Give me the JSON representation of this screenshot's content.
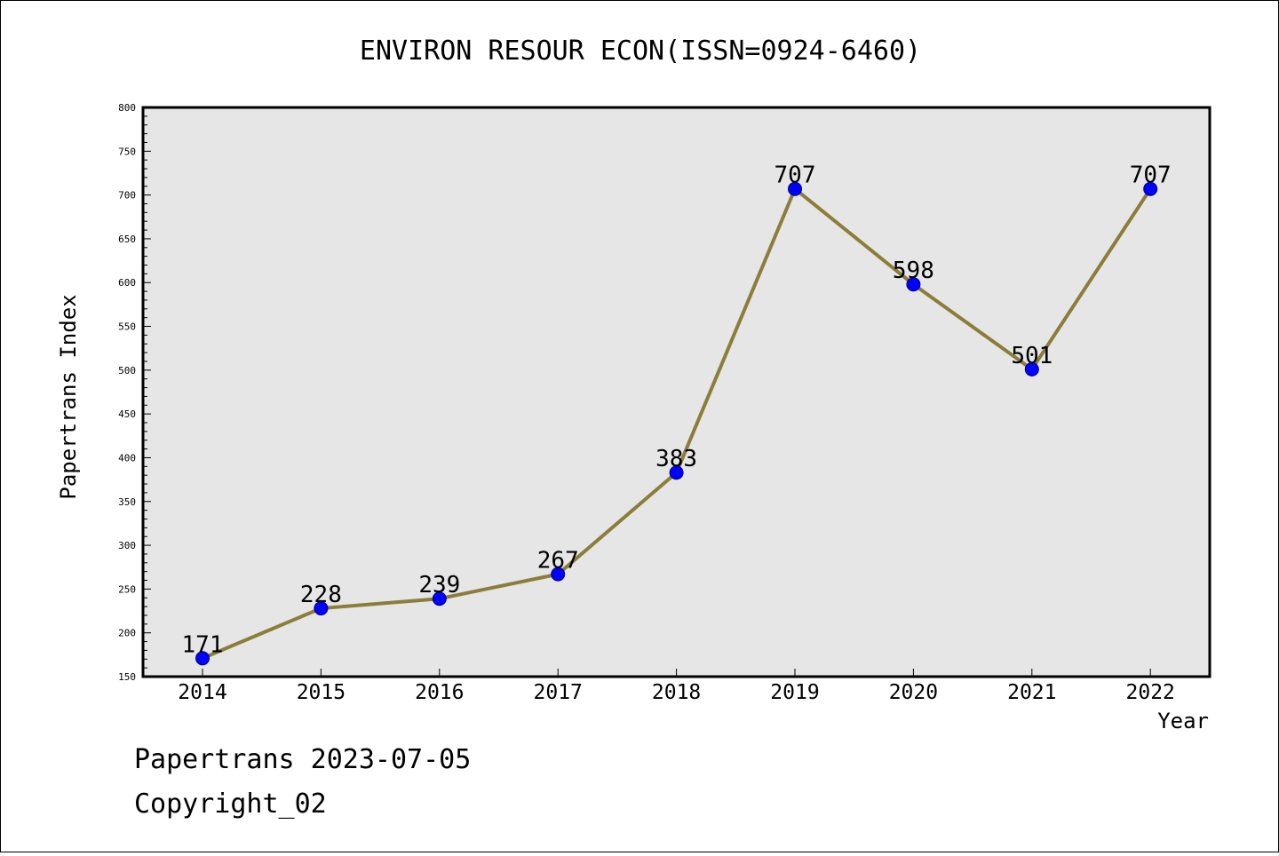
{
  "chart_data": {
    "type": "line",
    "title": "ENVIRON RESOUR ECON(ISSN=0924-6460)",
    "xlabel": "Year",
    "ylabel": "Papertrans Index",
    "x": [
      "2014",
      "2015",
      "2016",
      "2017",
      "2018",
      "2019",
      "2020",
      "2021",
      "2022"
    ],
    "series": [
      {
        "values": [
          171,
          228,
          239,
          267,
          383,
          707,
          598,
          501,
          707
        ],
        "data_labels": [
          "171",
          "228",
          "239",
          "267",
          "383",
          "707",
          "598",
          "501",
          "707"
        ]
      }
    ],
    "ylim": [
      150,
      800
    ],
    "yticks": [
      "150",
      "200",
      "250",
      "300",
      "350",
      "400",
      "450",
      "500",
      "550",
      "600",
      "650",
      "700",
      "750",
      "800"
    ],
    "grid": false,
    "legend": "none"
  },
  "footer": {
    "line1": "Papertrans 2023-07-05",
    "line2": "Copyright_02"
  },
  "colors": {
    "plot_background": "#e6e6e6",
    "line": "#8b7d3a",
    "marker": "#0000ff",
    "marker_edge": "#000080",
    "axis": "#000000"
  }
}
